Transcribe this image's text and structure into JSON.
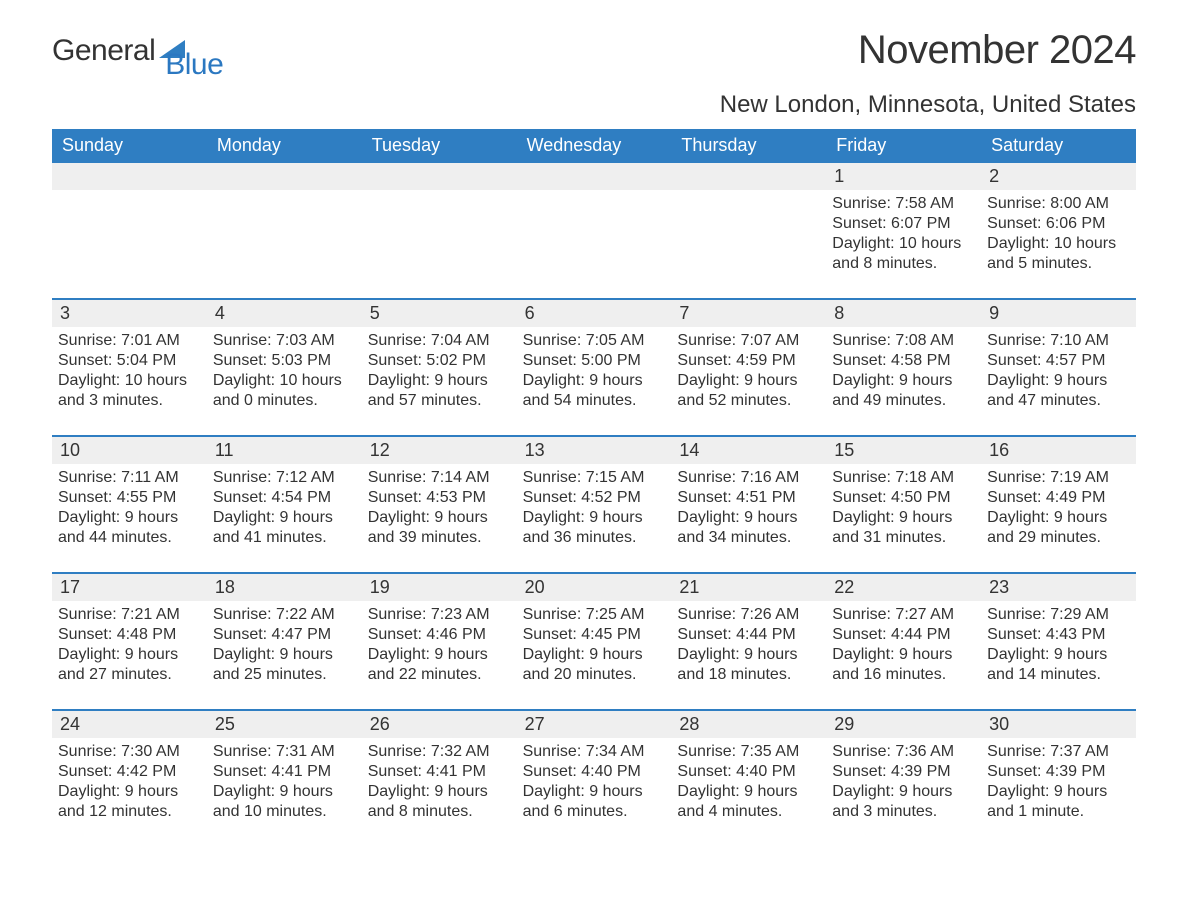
{
  "logo": {
    "part1": "General",
    "part2": "Blue",
    "icon_color": "#2f7ec2",
    "text1_color": "#333333",
    "text2_color": "#2b78c1"
  },
  "title": "November 2024",
  "location": "New London, Minnesota, United States",
  "colors": {
    "header_bg": "#2f7ec2",
    "header_text": "#ffffff",
    "daynum_bg": "#efefef",
    "row_border": "#2f7ec2",
    "body_text": "#333333",
    "background": "#ffffff"
  },
  "typography": {
    "title_fontsize": 40,
    "location_fontsize": 24,
    "header_fontsize": 18,
    "daynum_fontsize": 18,
    "info_fontsize": 16,
    "font_family": "Arial"
  },
  "columns": [
    "Sunday",
    "Monday",
    "Tuesday",
    "Wednesday",
    "Thursday",
    "Friday",
    "Saturday"
  ],
  "labels": {
    "sunrise": "Sunrise:",
    "sunset": "Sunset:",
    "daylight": "Daylight:"
  },
  "weeks": [
    [
      null,
      null,
      null,
      null,
      null,
      {
        "day": "1",
        "sunrise": "7:58 AM",
        "sunset": "6:07 PM",
        "daylight_line1": "10 hours",
        "daylight_line2": "and 8 minutes."
      },
      {
        "day": "2",
        "sunrise": "8:00 AM",
        "sunset": "6:06 PM",
        "daylight_line1": "10 hours",
        "daylight_line2": "and 5 minutes."
      }
    ],
    [
      {
        "day": "3",
        "sunrise": "7:01 AM",
        "sunset": "5:04 PM",
        "daylight_line1": "10 hours",
        "daylight_line2": "and 3 minutes."
      },
      {
        "day": "4",
        "sunrise": "7:03 AM",
        "sunset": "5:03 PM",
        "daylight_line1": "10 hours",
        "daylight_line2": "and 0 minutes."
      },
      {
        "day": "5",
        "sunrise": "7:04 AM",
        "sunset": "5:02 PM",
        "daylight_line1": "9 hours",
        "daylight_line2": "and 57 minutes."
      },
      {
        "day": "6",
        "sunrise": "7:05 AM",
        "sunset": "5:00 PM",
        "daylight_line1": "9 hours",
        "daylight_line2": "and 54 minutes."
      },
      {
        "day": "7",
        "sunrise": "7:07 AM",
        "sunset": "4:59 PM",
        "daylight_line1": "9 hours",
        "daylight_line2": "and 52 minutes."
      },
      {
        "day": "8",
        "sunrise": "7:08 AM",
        "sunset": "4:58 PM",
        "daylight_line1": "9 hours",
        "daylight_line2": "and 49 minutes."
      },
      {
        "day": "9",
        "sunrise": "7:10 AM",
        "sunset": "4:57 PM",
        "daylight_line1": "9 hours",
        "daylight_line2": "and 47 minutes."
      }
    ],
    [
      {
        "day": "10",
        "sunrise": "7:11 AM",
        "sunset": "4:55 PM",
        "daylight_line1": "9 hours",
        "daylight_line2": "and 44 minutes."
      },
      {
        "day": "11",
        "sunrise": "7:12 AM",
        "sunset": "4:54 PM",
        "daylight_line1": "9 hours",
        "daylight_line2": "and 41 minutes."
      },
      {
        "day": "12",
        "sunrise": "7:14 AM",
        "sunset": "4:53 PM",
        "daylight_line1": "9 hours",
        "daylight_line2": "and 39 minutes."
      },
      {
        "day": "13",
        "sunrise": "7:15 AM",
        "sunset": "4:52 PM",
        "daylight_line1": "9 hours",
        "daylight_line2": "and 36 minutes."
      },
      {
        "day": "14",
        "sunrise": "7:16 AM",
        "sunset": "4:51 PM",
        "daylight_line1": "9 hours",
        "daylight_line2": "and 34 minutes."
      },
      {
        "day": "15",
        "sunrise": "7:18 AM",
        "sunset": "4:50 PM",
        "daylight_line1": "9 hours",
        "daylight_line2": "and 31 minutes."
      },
      {
        "day": "16",
        "sunrise": "7:19 AM",
        "sunset": "4:49 PM",
        "daylight_line1": "9 hours",
        "daylight_line2": "and 29 minutes."
      }
    ],
    [
      {
        "day": "17",
        "sunrise": "7:21 AM",
        "sunset": "4:48 PM",
        "daylight_line1": "9 hours",
        "daylight_line2": "and 27 minutes."
      },
      {
        "day": "18",
        "sunrise": "7:22 AM",
        "sunset": "4:47 PM",
        "daylight_line1": "9 hours",
        "daylight_line2": "and 25 minutes."
      },
      {
        "day": "19",
        "sunrise": "7:23 AM",
        "sunset": "4:46 PM",
        "daylight_line1": "9 hours",
        "daylight_line2": "and 22 minutes."
      },
      {
        "day": "20",
        "sunrise": "7:25 AM",
        "sunset": "4:45 PM",
        "daylight_line1": "9 hours",
        "daylight_line2": "and 20 minutes."
      },
      {
        "day": "21",
        "sunrise": "7:26 AM",
        "sunset": "4:44 PM",
        "daylight_line1": "9 hours",
        "daylight_line2": "and 18 minutes."
      },
      {
        "day": "22",
        "sunrise": "7:27 AM",
        "sunset": "4:44 PM",
        "daylight_line1": "9 hours",
        "daylight_line2": "and 16 minutes."
      },
      {
        "day": "23",
        "sunrise": "7:29 AM",
        "sunset": "4:43 PM",
        "daylight_line1": "9 hours",
        "daylight_line2": "and 14 minutes."
      }
    ],
    [
      {
        "day": "24",
        "sunrise": "7:30 AM",
        "sunset": "4:42 PM",
        "daylight_line1": "9 hours",
        "daylight_line2": "and 12 minutes."
      },
      {
        "day": "25",
        "sunrise": "7:31 AM",
        "sunset": "4:41 PM",
        "daylight_line1": "9 hours",
        "daylight_line2": "and 10 minutes."
      },
      {
        "day": "26",
        "sunrise": "7:32 AM",
        "sunset": "4:41 PM",
        "daylight_line1": "9 hours",
        "daylight_line2": "and 8 minutes."
      },
      {
        "day": "27",
        "sunrise": "7:34 AM",
        "sunset": "4:40 PM",
        "daylight_line1": "9 hours",
        "daylight_line2": "and 6 minutes."
      },
      {
        "day": "28",
        "sunrise": "7:35 AM",
        "sunset": "4:40 PM",
        "daylight_line1": "9 hours",
        "daylight_line2": "and 4 minutes."
      },
      {
        "day": "29",
        "sunrise": "7:36 AM",
        "sunset": "4:39 PM",
        "daylight_line1": "9 hours",
        "daylight_line2": "and 3 minutes."
      },
      {
        "day": "30",
        "sunrise": "7:37 AM",
        "sunset": "4:39 PM",
        "daylight_line1": "9 hours",
        "daylight_line2": "and 1 minute."
      }
    ]
  ]
}
